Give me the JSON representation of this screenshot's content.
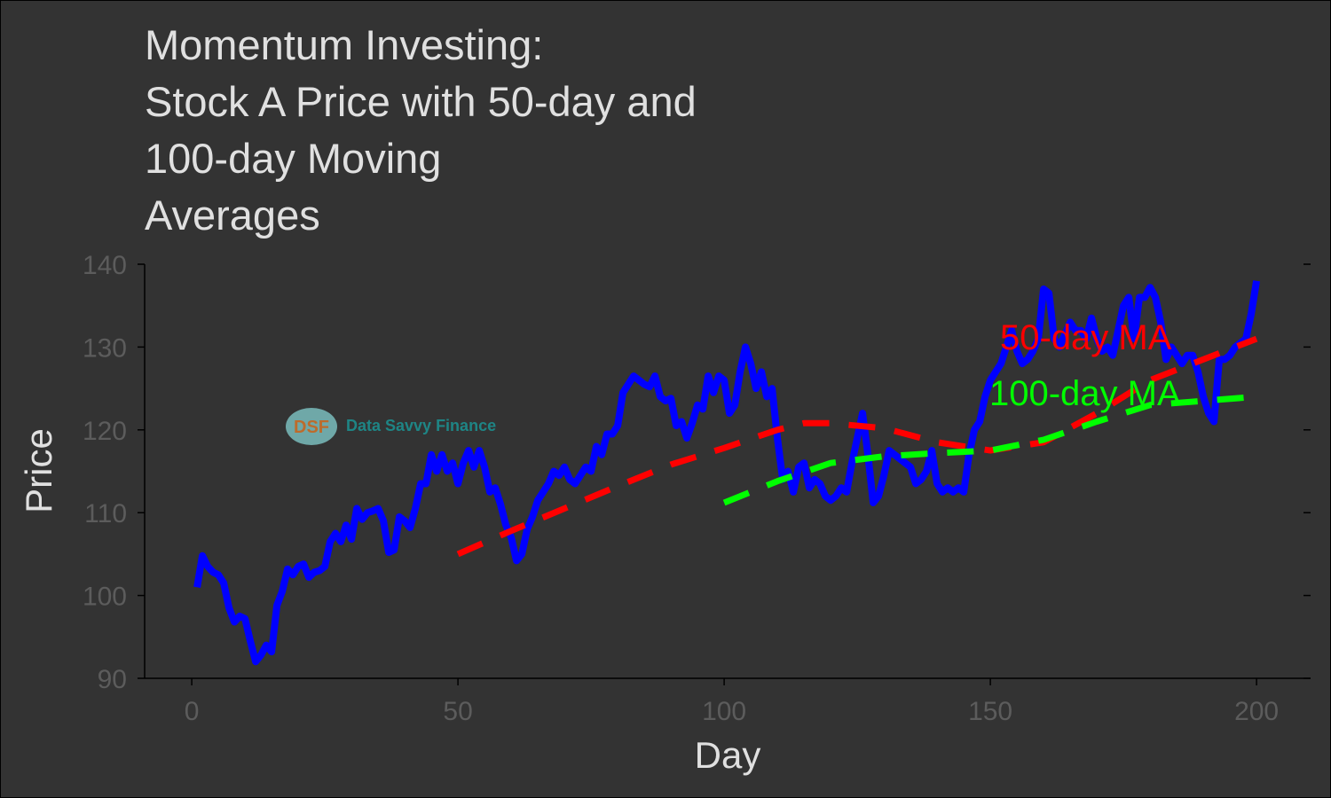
{
  "chart_data": {
    "type": "line",
    "title": "Momentum Investing:\nStock A Price with 50-day and\n100-day Moving\nAverages",
    "xlabel": "Day",
    "ylabel": "Price",
    "xlim": [
      -8.85,
      210.15
    ],
    "ylim": [
      90,
      140
    ],
    "xticks": [
      0,
      50,
      100,
      150,
      200
    ],
    "yticks": [
      90,
      100,
      110,
      120,
      130,
      140
    ],
    "grid": false,
    "watermark": {
      "logo": "DSF",
      "text": "Data Savvy Finance"
    },
    "series": [
      {
        "color": "#0000ff",
        "style": "solid",
        "x": [
          1,
          2,
          3,
          4,
          5,
          6,
          7,
          8,
          9,
          10,
          11,
          12,
          13,
          14,
          15,
          16,
          17,
          18,
          19,
          20,
          21,
          22,
          23,
          24,
          25,
          26,
          27,
          28,
          29,
          30,
          31,
          32,
          33,
          34,
          35,
          36,
          37,
          38,
          39,
          40,
          41,
          42,
          43,
          44,
          45,
          46,
          47,
          48,
          49,
          50,
          51,
          52,
          53,
          54,
          55,
          56,
          57,
          58,
          59,
          60,
          61,
          62,
          63,
          64,
          65,
          66,
          67,
          68,
          69,
          70,
          71,
          72,
          73,
          74,
          75,
          76,
          77,
          78,
          79,
          80,
          81,
          82,
          83,
          84,
          85,
          86,
          87,
          88,
          89,
          90,
          91,
          92,
          93,
          94,
          95,
          96,
          97,
          98,
          99,
          100,
          101,
          102,
          103,
          104,
          105,
          106,
          107,
          108,
          109,
          110,
          111,
          112,
          113,
          114,
          115,
          116,
          117,
          118,
          119,
          120,
          121,
          122,
          123,
          124,
          125,
          126,
          127,
          128,
          129,
          130,
          131,
          132,
          133,
          134,
          135,
          136,
          137,
          138,
          139,
          140,
          141,
          142,
          143,
          144,
          145,
          146,
          147,
          148,
          149,
          150,
          151,
          152,
          153,
          154,
          155,
          156,
          157,
          158,
          159,
          160,
          161,
          162,
          163,
          164,
          165,
          166,
          167,
          168,
          169,
          170,
          171,
          172,
          173,
          174,
          175,
          176,
          177,
          178,
          179,
          180,
          181,
          182,
          183,
          184,
          185,
          186,
          187,
          188,
          189,
          190,
          191,
          192,
          193,
          194,
          195,
          196,
          197,
          198,
          199,
          200
        ],
        "values": [
          101,
          104.8,
          103.5,
          102.8,
          102.5,
          101.5,
          98.5,
          96.8,
          97.5,
          97.2,
          94.5,
          92,
          92.8,
          94,
          93.2,
          98.8,
          100.5,
          103.2,
          102.5,
          103.5,
          103.8,
          102.2,
          102.8,
          103,
          103.5,
          106.5,
          107.5,
          106.5,
          108.5,
          106.8,
          110.5,
          109.2,
          110,
          110.2,
          110.5,
          109,
          105.2,
          105.5,
          109.5,
          109,
          108.2,
          110.5,
          113.5,
          113.5,
          117,
          115,
          117,
          115,
          116,
          113.5,
          116,
          117.5,
          115.5,
          117.5,
          115.5,
          112.5,
          113,
          111,
          108.5,
          107,
          104.2,
          105,
          108,
          109.5,
          111.5,
          112.5,
          113.5,
          115,
          114.5,
          115.5,
          114,
          113.5,
          114.5,
          115.5,
          115,
          118,
          117,
          119.5,
          119.5,
          120.5,
          124.5,
          125.5,
          126.5,
          126,
          125.5,
          125.2,
          126.5,
          124,
          123.5,
          123.8,
          120.5,
          121,
          119,
          120.8,
          123,
          122.5,
          126.5,
          124.5,
          126.5,
          126,
          122,
          123,
          127,
          130,
          128,
          125,
          127,
          124,
          125,
          119,
          114,
          115,
          112.5,
          115.5,
          116,
          113,
          114,
          113.5,
          112,
          111.5,
          112,
          113,
          112.5,
          116,
          119,
          122,
          117,
          111.2,
          112,
          114.5,
          117.5,
          117,
          116.5,
          116,
          115.5,
          113.5,
          114,
          115,
          117.5,
          113.5,
          112.5,
          113,
          112.5,
          113,
          112.5,
          117,
          120,
          121,
          124,
          126,
          127,
          128,
          130,
          132,
          129.5,
          128,
          128.5,
          129.5,
          131,
          137,
          136.5,
          131,
          130,
          131.5,
          133,
          132,
          132,
          131,
          133.5,
          131,
          129.5,
          130,
          129,
          132,
          135,
          136,
          131,
          136,
          136,
          137.2,
          136,
          133,
          128.5,
          130,
          129,
          128,
          129,
          129,
          127,
          124,
          122,
          121,
          128.5,
          128.5,
          129,
          130,
          130.5,
          131,
          134,
          138
        ]
      },
      {
        "name": "50-day MA",
        "color": "#ff0000",
        "style": "dashed",
        "x": [
          50,
          60,
          70,
          80,
          90,
          100,
          110,
          115,
          120,
          130,
          140,
          150,
          160,
          170,
          180,
          190,
          200
        ],
        "values": [
          105,
          107.8,
          110.5,
          113.2,
          115.8,
          117.8,
          120,
          120.8,
          120.8,
          120.2,
          118.5,
          117.5,
          118.5,
          122,
          126,
          128.5,
          131
        ]
      },
      {
        "name": "100-day MA",
        "color": "#00ff00",
        "style": "dashed",
        "x": [
          100,
          110,
          120,
          130,
          140,
          150,
          160,
          170,
          180,
          190,
          200
        ],
        "values": [
          111.2,
          113.8,
          116,
          116.8,
          117.2,
          117.5,
          118.8,
          121,
          123,
          123.5,
          124
        ]
      }
    ]
  }
}
